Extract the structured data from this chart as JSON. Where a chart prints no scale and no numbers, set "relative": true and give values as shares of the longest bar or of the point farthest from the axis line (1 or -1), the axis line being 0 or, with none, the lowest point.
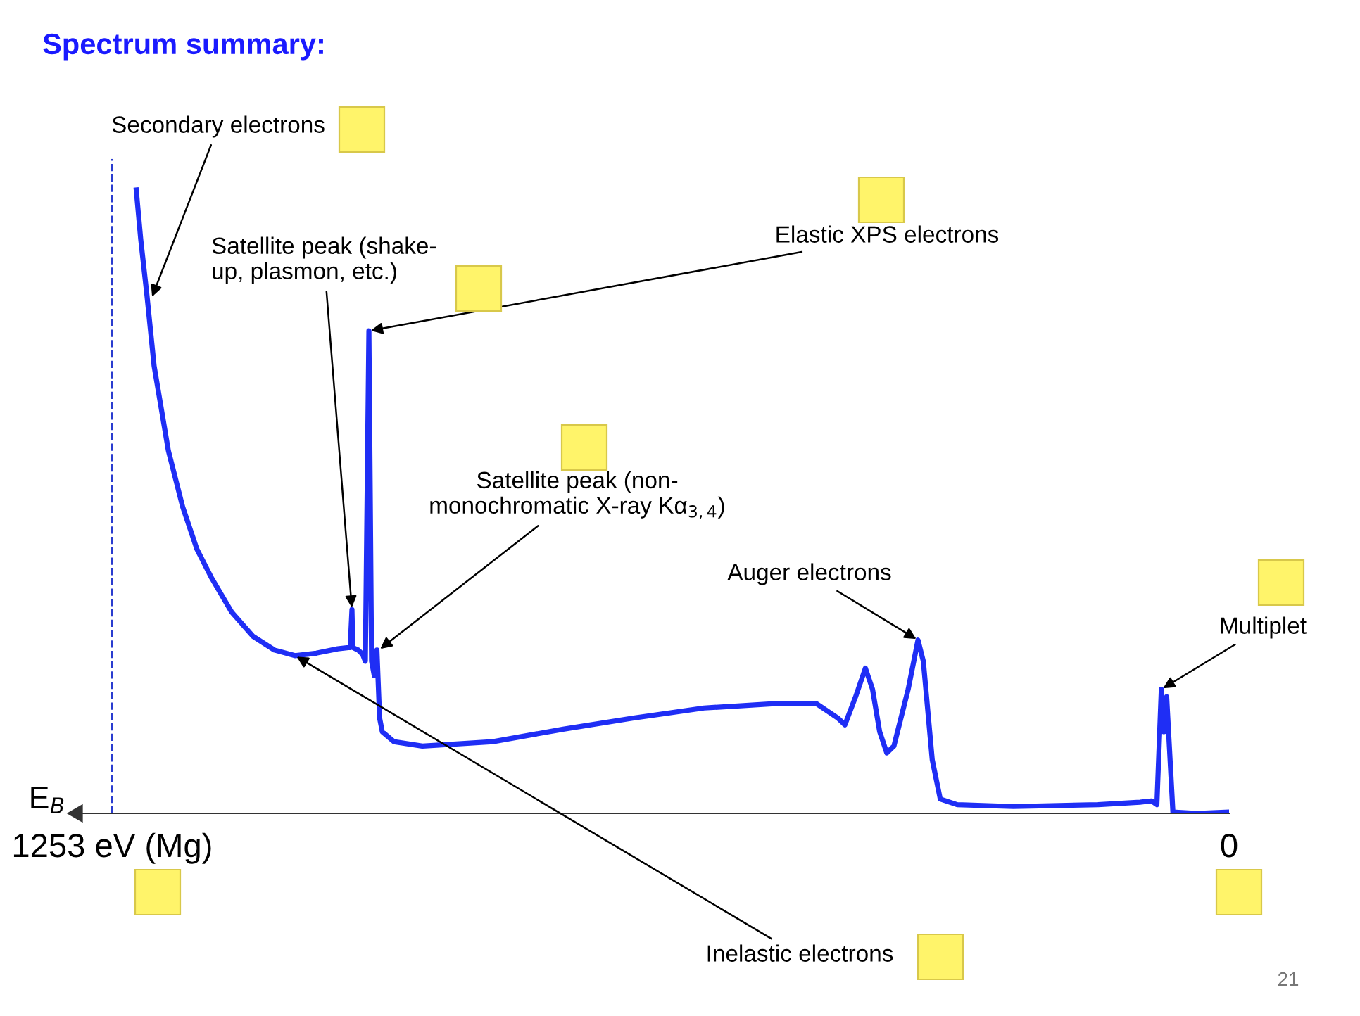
{
  "chart_data": {
    "type": "line",
    "relative": true,
    "title": "Spectrum summary:",
    "xlabel": "E$_{B}$",
    "xlim": [
      1292,
      0
    ],
    "xticks": [
      {
        "value": 1253,
        "label": "1253 eV (Mg)"
      },
      0
    ],
    "x": [
      1226,
      1221,
      1214,
      1206,
      1190,
      1174,
      1158,
      1142,
      1119,
      1095,
      1071,
      1048,
      1024,
      1000,
      988,
      986,
      984,
      983,
      977,
      972,
      969,
      965,
      962,
      959,
      956,
      953,
      950,
      937,
      905,
      826,
      747,
      668,
      589,
      510,
      463,
      439,
      431,
      419,
      408,
      400,
      392,
      384,
      376,
      360,
      349,
      343,
      333,
      324,
      305,
      242,
      147,
      100,
      87,
      81,
      76,
      73,
      70,
      67,
      63,
      36,
      0
    ],
    "series": [
      {
        "color": "#1f2ef5",
        "values": [
          1.0,
          0.921,
          0.831,
          0.718,
          0.582,
          0.492,
          0.424,
          0.379,
          0.323,
          0.284,
          0.262,
          0.253,
          0.257,
          0.264,
          0.266,
          0.266,
          0.327,
          0.266,
          0.262,
          0.255,
          0.244,
          0.774,
          0.244,
          0.221,
          0.262,
          0.153,
          0.131,
          0.115,
          0.108,
          0.115,
          0.135,
          0.153,
          0.169,
          0.176,
          0.176,
          0.153,
          0.142,
          0.187,
          0.233,
          0.199,
          0.131,
          0.097,
          0.108,
          0.199,
          0.278,
          0.244,
          0.086,
          0.023,
          0.014,
          0.011,
          0.014,
          0.018,
          0.02,
          0.014,
          0.199,
          0.131,
          0.187,
          0.108,
          0.002,
          0.0,
          0.002
        ]
      }
    ],
    "ref_lines": [
      {
        "axis": "x",
        "value": 1253,
        "color": "#2a3ccf",
        "line_style": "dashed"
      }
    ],
    "annotations": [
      {
        "text": "Secondary electrons",
        "x": 1209,
        "y": 0.826
      },
      {
        "text": "Satellite peak (shake-\nup, plasmon, etc.)",
        "x": 984,
        "y": 0.327
      },
      {
        "text": "Elastic XPS electrons",
        "x": 965,
        "y": 0.774
      },
      {
        "text": "Satellite peak (non-\nmonochromatic X-ray Kα$_{3,4}$)",
        "x": 954,
        "y": 0.262
      },
      {
        "text": "Auger electrons",
        "x": 349,
        "y": 0.278
      },
      {
        "text": "Multiplet",
        "x": 76,
        "y": 0.199
      },
      {
        "text": "Inelastic electrons",
        "x": 1048,
        "y": 0.253
      },
      "21"
    ],
    "grid": false,
    "marker": "none",
    "line_style": "solid"
  }
}
